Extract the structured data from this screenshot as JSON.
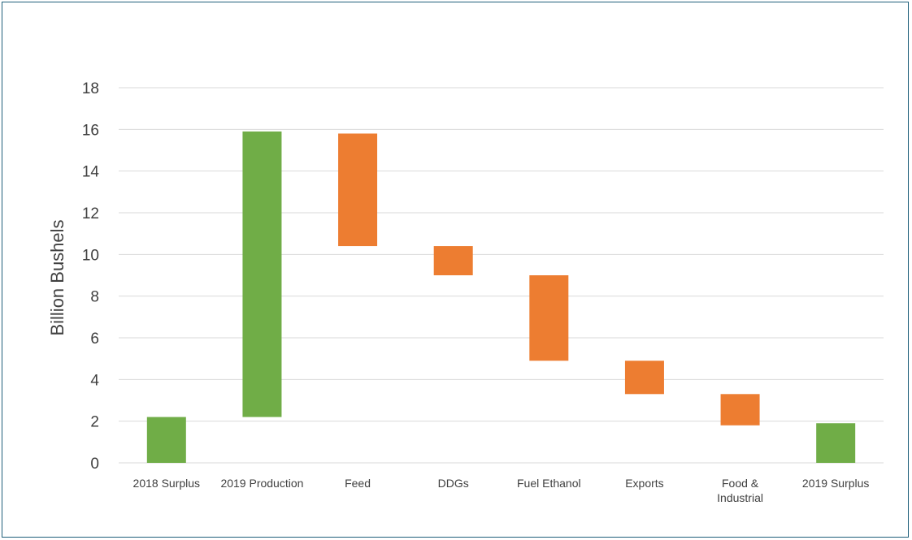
{
  "chart_data": {
    "type": "waterfall",
    "title": "",
    "xlabel": "",
    "ylabel": "Billion Bushels",
    "ylim": [
      0,
      18
    ],
    "yticks": [
      0,
      2,
      4,
      6,
      8,
      10,
      12,
      14,
      16,
      18
    ],
    "grid": true,
    "legend": "none",
    "categories": [
      "2018 Surplus",
      "2019 Production",
      "Feed",
      "DDGs",
      "Fuel Ethanol",
      "Exports",
      "Food & Industrial",
      "2019 Surplus"
    ],
    "bars": [
      {
        "label": "2018 Surplus",
        "start": 0,
        "end": 2.2,
        "kind": "total"
      },
      {
        "label": "2019 Production",
        "start": 2.2,
        "end": 15.9,
        "kind": "total"
      },
      {
        "label": "Feed",
        "start": 15.8,
        "end": 10.4,
        "kind": "decrease"
      },
      {
        "label": "DDGs",
        "start": 10.4,
        "end": 9.0,
        "kind": "decrease"
      },
      {
        "label": "Fuel Ethanol",
        "start": 9.0,
        "end": 4.9,
        "kind": "decrease"
      },
      {
        "label": "Exports",
        "start": 4.9,
        "end": 3.3,
        "kind": "decrease"
      },
      {
        "label": "Food & Industrial",
        "start": 3.3,
        "end": 1.8,
        "kind": "decrease"
      },
      {
        "label": "2019 Surplus",
        "start": 0,
        "end": 1.9,
        "kind": "total"
      }
    ],
    "colors": {
      "total": "#70ad47",
      "decrease": "#ed7d31",
      "grid": "#d9d9d9",
      "text": "#404040"
    }
  }
}
